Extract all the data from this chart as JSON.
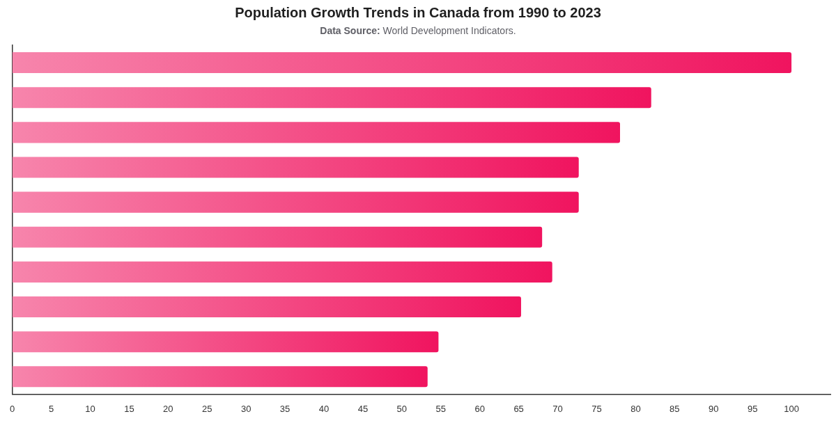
{
  "chart_data": {
    "type": "bar",
    "orientation": "horizontal",
    "title": "Population Growth Trends in Canada from 1990 to 2023",
    "subtitle": "Data Source: World Development Indicators.",
    "categories": [
      null,
      null,
      null,
      null,
      null,
      null,
      null,
      null,
      null,
      null
    ],
    "values": [
      100,
      82,
      78,
      72.7,
      72.7,
      68,
      69.3,
      65.3,
      54.7,
      53.3
    ],
    "color": "#f0145f",
    "xlim": [
      0,
      105
    ],
    "xticks": [
      0,
      5,
      10,
      15,
      20,
      25,
      30,
      35,
      40,
      45,
      50,
      55,
      60,
      65,
      70,
      75,
      80,
      85,
      90,
      95,
      100
    ],
    "grid": false
  }
}
